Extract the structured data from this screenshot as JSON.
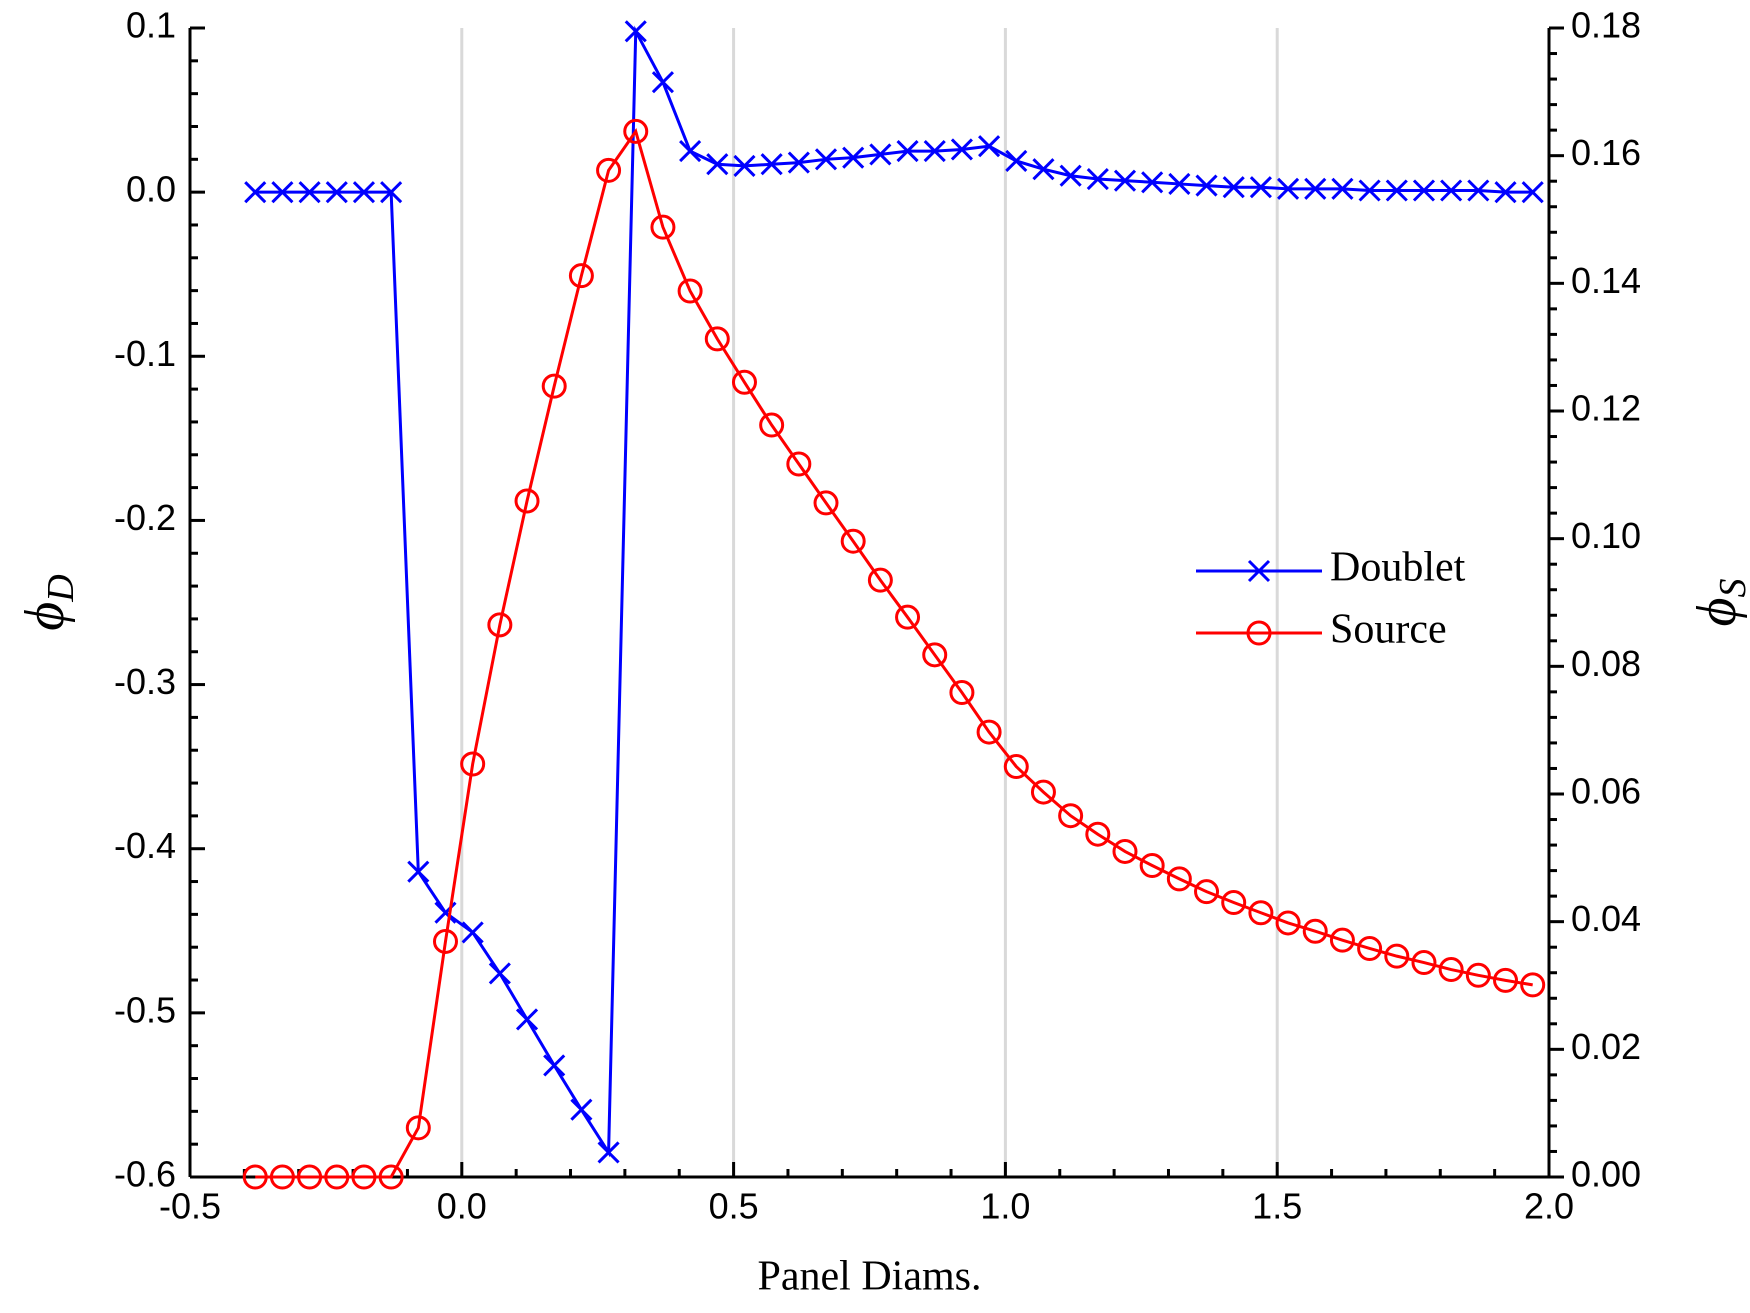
{
  "chart_data": {
    "type": "line",
    "x": [
      -0.38,
      -0.33,
      -0.28,
      -0.23,
      -0.18,
      -0.13,
      -0.08,
      -0.03,
      0.02,
      0.07,
      0.12,
      0.17,
      0.22,
      0.27,
      0.32,
      0.37,
      0.42,
      0.47,
      0.52,
      0.57,
      0.62,
      0.67,
      0.72,
      0.77,
      0.82,
      0.87,
      0.92,
      0.97,
      1.02,
      1.07,
      1.12,
      1.17,
      1.22,
      1.27,
      1.32,
      1.37,
      1.42,
      1.47,
      1.52,
      1.57,
      1.62,
      1.67,
      1.72,
      1.77,
      1.82,
      1.87,
      1.92,
      1.97
    ],
    "series": [
      {
        "name": "Doublet",
        "color": "#0000ff",
        "marker": "x",
        "axis": "y",
        "values": [
          0,
          0,
          0,
          0,
          0,
          0,
          -0.414,
          -0.439,
          -0.451,
          -0.476,
          -0.504,
          -0.532,
          -0.559,
          -0.585,
          0.098,
          0.067,
          0.025,
          0.017,
          0.016,
          0.017,
          0.018,
          0.02,
          0.021,
          0.023,
          0.025,
          0.025,
          0.026,
          0.028,
          0.019,
          0.014,
          0.01,
          0.008,
          0.007,
          0.006,
          0.005,
          0.004,
          0.003,
          0.003,
          0.002,
          0.002,
          0.002,
          0.001,
          0.001,
          0.001,
          0.001,
          0.001,
          0,
          0
        ]
      },
      {
        "name": "Source",
        "color": "#ff0000",
        "marker": "o",
        "axis": "y2",
        "values": [
          0,
          0,
          0,
          0,
          0,
          0,
          0.0077,
          0.0369,
          0.0647,
          0.0865,
          0.1059,
          0.1239,
          0.1412,
          0.1577,
          0.1638,
          0.1488,
          0.1388,
          0.1313,
          0.1245,
          0.1178,
          0.1117,
          0.1056,
          0.0996,
          0.0935,
          0.0877,
          0.0818,
          0.0759,
          0.0697,
          0.0643,
          0.0603,
          0.0566,
          0.0537,
          0.051,
          0.0488,
          0.0467,
          0.0447,
          0.043,
          0.0414,
          0.0398,
          0.0385,
          0.0371,
          0.0358,
          0.0346,
          0.0336,
          0.0325,
          0.0316,
          0.0308,
          0.0301
        ]
      }
    ],
    "xlabel": "Panel Diams.",
    "ylabel": {
      "symbol": "ϕ",
      "subscript": "D"
    },
    "y2label": {
      "symbol": "ϕ",
      "subscript": "S"
    },
    "xlim": [
      -0.5,
      2.0
    ],
    "xticks": [
      -0.5,
      {
        "value": 0,
        "label": "0.0"
      },
      0.5,
      {
        "value": 1,
        "label": "1.0"
      },
      1.5,
      {
        "value": 2,
        "label": "2.0"
      }
    ],
    "ylim": [
      -0.6,
      0.1
    ],
    "yticks": [
      -0.6,
      -0.5,
      -0.4,
      -0.3,
      -0.2,
      -0.1,
      {
        "value": 0,
        "label": "0.0"
      },
      0.1
    ],
    "y2lim": [
      0,
      0.18
    ],
    "y2ticks": [
      {
        "value": 0,
        "label": "0.00"
      },
      0.02,
      0.04,
      0.06,
      0.08,
      {
        "value": 0.1,
        "label": "0.10"
      },
      0.12,
      0.14,
      0.16,
      0.18
    ],
    "grid": "x",
    "legend": "right"
  }
}
